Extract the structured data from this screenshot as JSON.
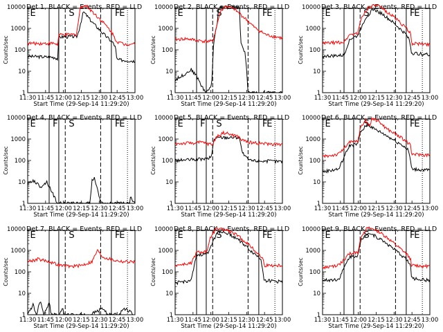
{
  "chart_data": [
    {
      "type": "line",
      "title": "Det 1, BLACK = Events, RED = LLD",
      "segment_labels": [
        "E",
        "S",
        "F",
        "E"
      ],
      "series": [
        {
          "name": "BLACK = Events",
          "color": "#000000",
          "shape": [
            [
              0,
              50
            ],
            [
              0.25,
              45
            ],
            [
              0.28,
              38
            ],
            [
              0.29,
              400
            ],
            [
              0.45,
              420
            ],
            [
              0.46,
              430
            ],
            [
              0.47,
              600
            ],
            [
              0.52,
              6000
            ],
            [
              0.6,
              2000
            ],
            [
              0.7,
              600
            ],
            [
              0.8,
              200
            ],
            [
              0.82,
              120
            ],
            [
              0.83,
              35
            ],
            [
              1,
              30
            ]
          ]
        },
        {
          "name": "RED = LLD",
          "color": "#ff0000",
          "shape": [
            [
              0,
              200
            ],
            [
              0.25,
              200
            ],
            [
              0.28,
              170
            ],
            [
              0.29,
              500
            ],
            [
              0.45,
              520
            ],
            [
              0.46,
              800
            ],
            [
              0.49,
              9000
            ],
            [
              0.52,
              12000
            ],
            [
              0.55,
              11000
            ],
            [
              0.62,
              5000
            ],
            [
              0.7,
              2000
            ],
            [
              0.78,
              700
            ],
            [
              0.83,
              250
            ],
            [
              0.9,
              180
            ],
            [
              1,
              200
            ]
          ]
        }
      ]
    },
    {
      "type": "line",
      "title": "Det 2, BLACK = Events, RED = LLD",
      "segment_labels": [
        "E",
        "S",
        "F",
        "E"
      ],
      "series": [
        {
          "name": "BLACK = Events",
          "color": "#000000",
          "shape": [
            [
              0,
              4
            ],
            [
              0.1,
              8
            ],
            [
              0.15,
              12
            ],
            [
              0.2,
              6
            ],
            [
              0.25,
              2
            ],
            [
              0.28,
              1
            ],
            [
              0.34,
              2
            ],
            [
              0.36,
              250
            ],
            [
              0.37,
              500
            ],
            [
              0.39,
              1500
            ],
            [
              0.4,
              5000
            ],
            [
              0.41,
              10000
            ],
            [
              0.6,
              10000
            ],
            [
              0.61,
              300
            ],
            [
              0.63,
              120
            ],
            [
              0.65,
              80
            ],
            [
              0.66,
              30
            ],
            [
              0.67,
              5
            ],
            [
              0.68,
              1
            ],
            [
              1,
              1
            ]
          ]
        },
        {
          "name": "RED = LLD",
          "color": "#ff0000",
          "shape": [
            [
              0,
              300
            ],
            [
              0.1,
              330
            ],
            [
              0.2,
              280
            ],
            [
              0.28,
              250
            ],
            [
              0.35,
              250
            ],
            [
              0.38,
              900
            ],
            [
              0.42,
              6000
            ],
            [
              0.47,
              11000
            ],
            [
              0.55,
              8000
            ],
            [
              0.65,
              3000
            ],
            [
              0.75,
              1000
            ],
            [
              0.85,
              500
            ],
            [
              1,
              350
            ]
          ]
        }
      ]
    },
    {
      "type": "line",
      "title": "Det 3, BLACK = Events, RED = LLD",
      "segment_labels": [
        "E",
        "S",
        "F",
        "E"
      ],
      "series": [
        {
          "name": "BLACK = Events",
          "color": "#000000",
          "shape": [
            [
              0,
              50
            ],
            [
              0.2,
              55
            ],
            [
              0.25,
              300
            ],
            [
              0.3,
              400
            ],
            [
              0.33,
              450
            ],
            [
              0.34,
              700
            ],
            [
              0.4,
              3000
            ],
            [
              0.47,
              8000
            ],
            [
              0.55,
              5000
            ],
            [
              0.65,
              2000
            ],
            [
              0.75,
              700
            ],
            [
              0.8,
              400
            ],
            [
              0.82,
              150
            ],
            [
              0.83,
              70
            ],
            [
              1,
              60
            ]
          ]
        },
        {
          "name": "RED = LLD",
          "color": "#ff0000",
          "shape": [
            [
              0,
              200
            ],
            [
              0.2,
              230
            ],
            [
              0.25,
              500
            ],
            [
              0.33,
              600
            ],
            [
              0.36,
              3000
            ],
            [
              0.42,
              9000
            ],
            [
              0.48,
              12000
            ],
            [
              0.52,
              11000
            ],
            [
              0.6,
              6000
            ],
            [
              0.7,
              2500
            ],
            [
              0.78,
              1000
            ],
            [
              0.82,
              600
            ],
            [
              0.83,
              200
            ],
            [
              1,
              180
            ]
          ]
        }
      ]
    },
    {
      "type": "line",
      "title": "Det 4, BLACK = Events, RED = LLD",
      "segment_labels": [
        "E",
        "F",
        "S",
        "F",
        "E"
      ],
      "series": [
        {
          "name": "BLACK = Events",
          "color": "#000000",
          "shape": [
            [
              0,
              8
            ],
            [
              0.05,
              12
            ],
            [
              0.12,
              6
            ],
            [
              0.18,
              10
            ],
            [
              0.22,
              4
            ],
            [
              0.25,
              2
            ],
            [
              0.27,
              1
            ],
            [
              0.58,
              1
            ],
            [
              0.6,
              12
            ],
            [
              0.62,
              15
            ],
            [
              0.64,
              8
            ],
            [
              0.66,
              3
            ],
            [
              0.68,
              1
            ],
            [
              0.95,
              1
            ],
            [
              0.96,
              2
            ],
            [
              1,
              1
            ]
          ]
        }
      ]
    },
    {
      "type": "line",
      "title": "Det 5, BLACK = Events, RED = LLD",
      "segment_labels": [
        "E",
        "F",
        "S",
        "F",
        "E"
      ],
      "series": [
        {
          "name": "BLACK = Events",
          "color": "#000000",
          "shape": [
            [
              0,
              100
            ],
            [
              0.3,
              120
            ],
            [
              0.34,
              150
            ],
            [
              0.36,
              1000
            ],
            [
              0.42,
              1200
            ],
            [
              0.6,
              1200
            ],
            [
              0.62,
              300
            ],
            [
              0.65,
              150
            ],
            [
              0.7,
              100
            ],
            [
              1,
              90
            ]
          ]
        },
        {
          "name": "RED = LLD",
          "color": "#ff0000",
          "shape": [
            [
              0,
              600
            ],
            [
              0.25,
              700
            ],
            [
              0.3,
              600
            ],
            [
              0.35,
              550
            ],
            [
              0.38,
              1200
            ],
            [
              0.45,
              2000
            ],
            [
              0.55,
              1500
            ],
            [
              0.6,
              1200
            ],
            [
              0.62,
              900
            ],
            [
              0.7,
              700
            ],
            [
              0.85,
              600
            ],
            [
              1,
              550
            ]
          ]
        }
      ]
    },
    {
      "type": "line",
      "title": "Det 6, BLACK = Events, RED = LLD",
      "segment_labels": [
        "E",
        "S",
        "F",
        "E"
      ],
      "series": [
        {
          "name": "BLACK = Events",
          "color": "#000000",
          "shape": [
            [
              0,
              30
            ],
            [
              0.15,
              40
            ],
            [
              0.25,
              500
            ],
            [
              0.33,
              600
            ],
            [
              0.35,
              2000
            ],
            [
              0.42,
              5000
            ],
            [
              0.48,
              3000
            ],
            [
              0.55,
              2000
            ],
            [
              0.65,
              1000
            ],
            [
              0.75,
              500
            ],
            [
              0.8,
              300
            ],
            [
              0.82,
              100
            ],
            [
              0.83,
              40
            ],
            [
              1,
              35
            ]
          ]
        },
        {
          "name": "RED = LLD",
          "color": "#ff0000",
          "shape": [
            [
              0,
              150
            ],
            [
              0.15,
              200
            ],
            [
              0.25,
              700
            ],
            [
              0.33,
              800
            ],
            [
              0.35,
              3000
            ],
            [
              0.4,
              8000
            ],
            [
              0.44,
              4000
            ],
            [
              0.46,
              9000
            ],
            [
              0.52,
              7000
            ],
            [
              0.6,
              3000
            ],
            [
              0.7,
              1500
            ],
            [
              0.78,
              800
            ],
            [
              0.82,
              500
            ],
            [
              0.83,
              200
            ],
            [
              1,
              180
            ]
          ]
        }
      ]
    },
    {
      "type": "line",
      "title": "Det 7, BLACK = Events, RED = LLD",
      "segment_labels": [
        "E",
        "S",
        "F",
        "E"
      ],
      "series": [
        {
          "name": "BLACK = Events",
          "color": "#000000",
          "shape": [
            [
              0,
              1
            ],
            [
              0.05,
              3
            ],
            [
              0.08,
              1
            ],
            [
              0.12,
              5
            ],
            [
              0.15,
              1
            ],
            [
              0.2,
              4
            ],
            [
              0.22,
              1
            ],
            [
              0.3,
              1
            ],
            [
              0.32,
              2
            ],
            [
              0.35,
              1
            ],
            [
              0.58,
              1
            ],
            [
              0.7,
              2
            ],
            [
              0.75,
              1
            ],
            [
              0.85,
              1
            ],
            [
              0.9,
              2
            ],
            [
              1,
              1
            ]
          ]
        },
        {
          "name": "RED = LLD",
          "color": "#ff0000",
          "shape": [
            [
              0,
              300
            ],
            [
              0.1,
              400
            ],
            [
              0.2,
              300
            ],
            [
              0.3,
              200
            ],
            [
              0.4,
              180
            ],
            [
              0.5,
              200
            ],
            [
              0.6,
              300
            ],
            [
              0.65,
              1000
            ],
            [
              0.7,
              500
            ],
            [
              0.8,
              350
            ],
            [
              0.9,
              300
            ],
            [
              1,
              300
            ]
          ]
        }
      ]
    },
    {
      "type": "line",
      "title": "Det 8, BLACK = Events, RED = LLD",
      "segment_labels": [
        "E",
        "S",
        "F",
        "E"
      ],
      "series": [
        {
          "name": "BLACK = Events",
          "color": "#000000",
          "shape": [
            [
              0,
              30
            ],
            [
              0.15,
              40
            ],
            [
              0.2,
              600
            ],
            [
              0.3,
              700
            ],
            [
              0.34,
              2000
            ],
            [
              0.4,
              8000
            ],
            [
              0.5,
              6000
            ],
            [
              0.6,
              3000
            ],
            [
              0.7,
              1000
            ],
            [
              0.8,
              400
            ],
            [
              0.82,
              100
            ],
            [
              0.83,
              40
            ],
            [
              1,
              35
            ]
          ]
        },
        {
          "name": "RED = LLD",
          "color": "#ff0000",
          "shape": [
            [
              0,
              200
            ],
            [
              0.15,
              250
            ],
            [
              0.2,
              800
            ],
            [
              0.3,
              900
            ],
            [
              0.33,
              4000
            ],
            [
              0.38,
              10000
            ],
            [
              0.48,
              9000
            ],
            [
              0.58,
              5000
            ],
            [
              0.68,
              2000
            ],
            [
              0.76,
              800
            ],
            [
              0.82,
              400
            ],
            [
              0.83,
              200
            ],
            [
              1,
              200
            ]
          ]
        }
      ]
    },
    {
      "type": "line",
      "title": "Det 9, BLACK = Events, RED = LLD",
      "segment_labels": [
        "E",
        "S",
        "F",
        "E"
      ],
      "series": [
        {
          "name": "BLACK = Events",
          "color": "#000000",
          "shape": [
            [
              0,
              40
            ],
            [
              0.15,
              45
            ],
            [
              0.25,
              500
            ],
            [
              0.33,
              600
            ],
            [
              0.36,
              3000
            ],
            [
              0.42,
              7000
            ],
            [
              0.48,
              5000
            ],
            [
              0.58,
              2500
            ],
            [
              0.68,
              1000
            ],
            [
              0.78,
              400
            ],
            [
              0.82,
              200
            ],
            [
              0.83,
              50
            ],
            [
              1,
              40
            ]
          ]
        },
        {
          "name": "RED = LLD",
          "color": "#ff0000",
          "shape": [
            [
              0,
              150
            ],
            [
              0.15,
              200
            ],
            [
              0.25,
              700
            ],
            [
              0.33,
              800
            ],
            [
              0.36,
              5000
            ],
            [
              0.42,
              11000
            ],
            [
              0.5,
              9000
            ],
            [
              0.6,
              4000
            ],
            [
              0.7,
              1500
            ],
            [
              0.78,
              700
            ],
            [
              0.82,
              400
            ],
            [
              0.83,
              200
            ],
            [
              1,
              180
            ]
          ]
        }
      ]
    }
  ],
  "shared": {
    "xlabel": "Start Time (29-Sep-14 11:29:20)",
    "ylabel": "Counts/sec",
    "yscale": "log",
    "ylim": [
      1,
      10000
    ],
    "yticks": [
      "1",
      "10",
      "100",
      "1000",
      "10000"
    ],
    "xticks": [
      "11:30",
      "11:45",
      "12:00",
      "12:15",
      "12:30",
      "12:45",
      "13:00"
    ],
    "xlim": [
      0,
      1
    ]
  }
}
